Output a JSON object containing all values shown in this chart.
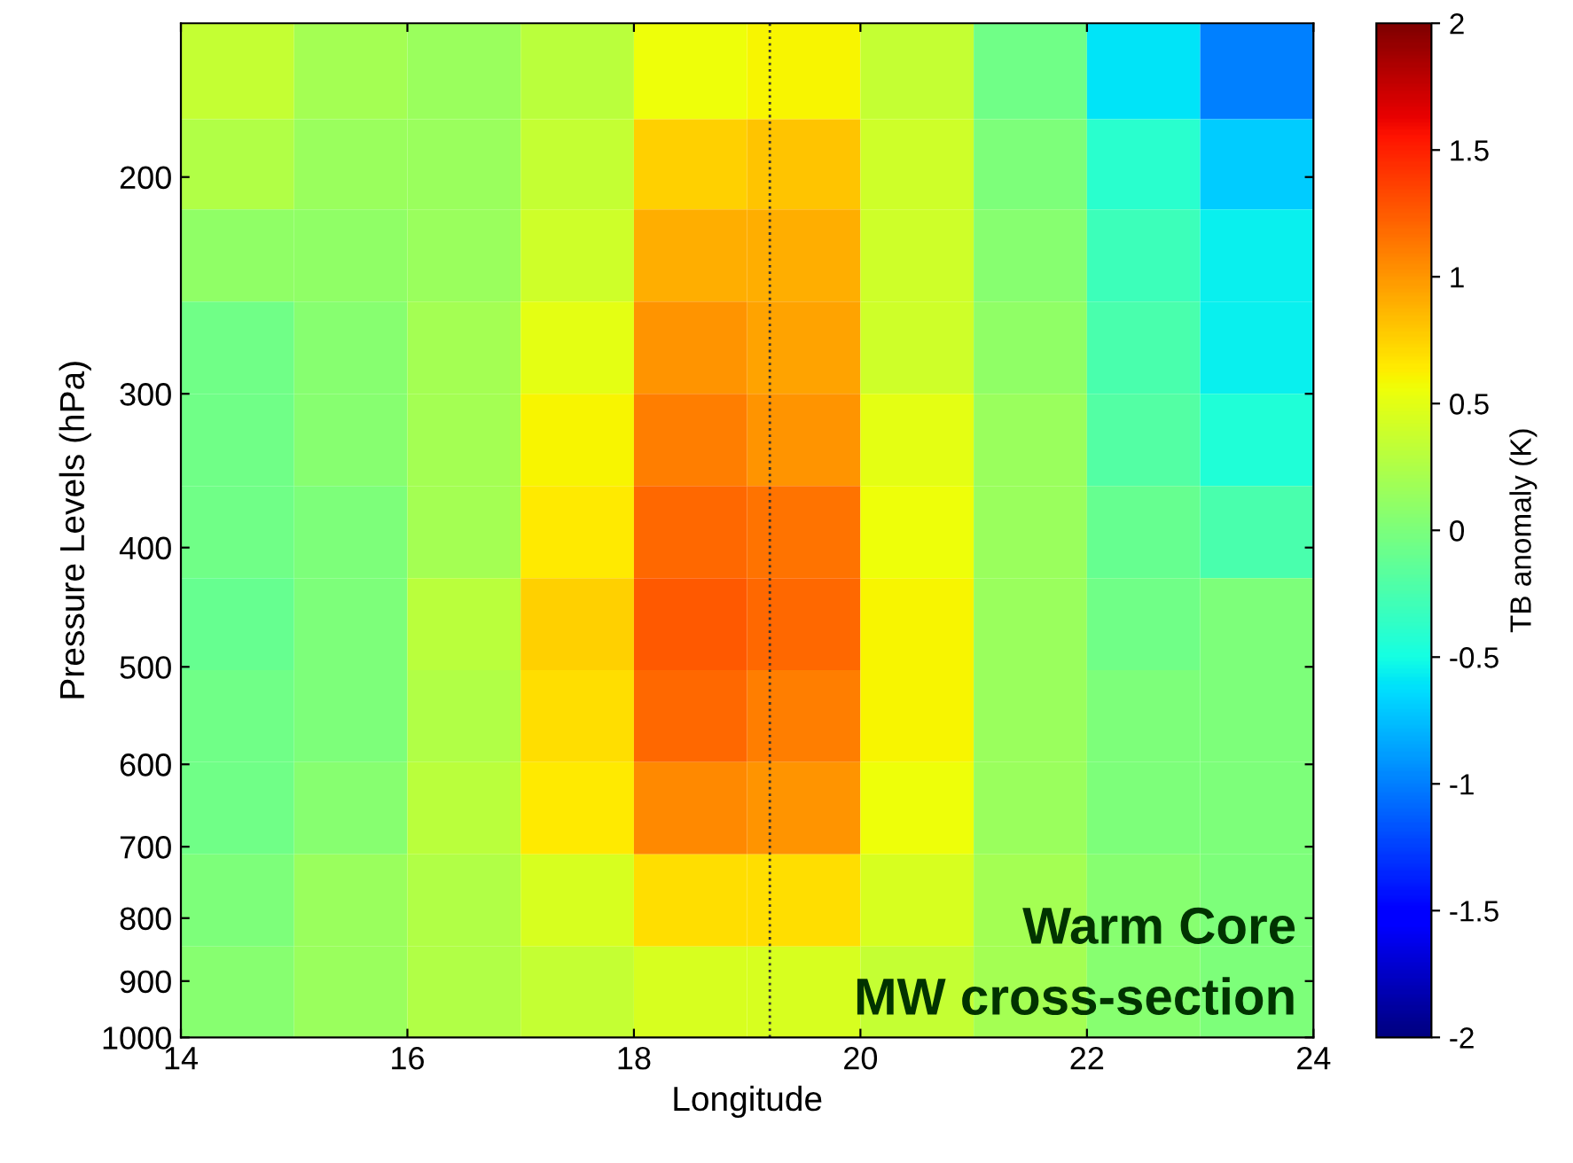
{
  "chart_data": {
    "type": "heatmap",
    "xlabel": "Longitude",
    "ylabel": "Pressure Levels (hPa)",
    "clabel": "TB anomaly (K)",
    "x": [
      14.5,
      15.5,
      16.5,
      17.5,
      18.5,
      19.5,
      20.5,
      21.5,
      22.5,
      23.5
    ],
    "y": [
      165,
      194,
      231,
      274,
      326,
      387,
      460,
      546,
      649,
      771,
      916
    ],
    "cells": [
      [
        0.35,
        0.2,
        0.15,
        0.3,
        0.55,
        0.6,
        0.35,
        -0.05,
        -0.6,
        -1.0
      ],
      [
        0.25,
        0.15,
        0.15,
        0.35,
        0.75,
        0.8,
        0.4,
        0.0,
        -0.4,
        -0.7
      ],
      [
        0.1,
        0.1,
        0.15,
        0.4,
        0.9,
        0.9,
        0.4,
        0.05,
        -0.3,
        -0.55
      ],
      [
        -0.05,
        0.05,
        0.2,
        0.5,
        1.0,
        0.95,
        0.4,
        0.1,
        -0.25,
        -0.55
      ],
      [
        -0.05,
        0.05,
        0.2,
        0.6,
        1.1,
        1.0,
        0.5,
        0.15,
        -0.2,
        -0.45
      ],
      [
        -0.05,
        0.0,
        0.2,
        0.65,
        1.2,
        1.15,
        0.55,
        0.15,
        -0.1,
        -0.25
      ],
      [
        -0.1,
        0.0,
        0.3,
        0.75,
        1.25,
        1.2,
        0.6,
        0.15,
        -0.05,
        0.0
      ],
      [
        -0.05,
        0.0,
        0.25,
        0.7,
        1.2,
        1.1,
        0.6,
        0.15,
        0.0,
        0.0
      ],
      [
        -0.05,
        0.05,
        0.3,
        0.65,
        1.05,
        1.0,
        0.55,
        0.15,
        0.0,
        0.0
      ],
      [
        0.0,
        0.15,
        0.25,
        0.45,
        0.7,
        0.7,
        0.45,
        0.2,
        0.05,
        0.0
      ],
      [
        0.05,
        0.15,
        0.25,
        0.35,
        0.45,
        0.45,
        0.35,
        0.2,
        0.05,
        0.0
      ]
    ],
    "xlim": [
      14,
      24
    ],
    "xticks": [
      14,
      16,
      18,
      20,
      22,
      24
    ],
    "ylim": [
      1000,
      150
    ],
    "yticks": [
      200,
      300,
      400,
      500,
      600,
      700,
      800,
      900,
      1000
    ],
    "log": "y",
    "clim": [
      -2,
      2
    ],
    "cticks": [
      -2,
      -1.5,
      -1,
      -0.5,
      0,
      0.5,
      1,
      1.5,
      2
    ],
    "ref_lines": [
      {
        "axis": "x",
        "value": 19.2,
        "color": "#333333",
        "line_style": "dotted"
      }
    ],
    "annotations": [
      "Warm Core",
      "MW cross-section"
    ]
  }
}
